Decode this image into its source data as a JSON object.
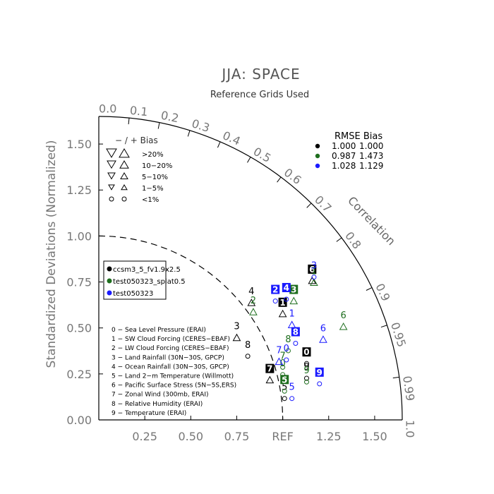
{
  "chart_data": {
    "type": "scatter",
    "title": "JJA: SPACE",
    "subtitle": "Reference Grids Used",
    "ylabel": "Standardized Deviations (Normalized)",
    "xlabel_ref": "REF",
    "corr_label": "Correlation",
    "x_ticks": [
      "0.25",
      "0.50",
      "0.75",
      "REF",
      "1.25",
      "1.50"
    ],
    "y_ticks": [
      "0.00",
      "0.25",
      "0.50",
      "0.75",
      "1.00",
      "1.25",
      "1.50"
    ],
    "corr_ticks": [
      "0.0",
      "0.1",
      "0.2",
      "0.3",
      "0.4",
      "0.5",
      "0.6",
      "0.7",
      "0.8",
      "0.9",
      "0.95",
      "0.99",
      "1.0"
    ],
    "ylim": [
      0,
      1.65
    ],
    "xlim": [
      0,
      1.65
    ],
    "bias_legend": {
      "header": "− / +   Bias",
      "rows": [
        ">20%",
        "10−20%",
        "5−10%",
        "1−5%",
        "<1%"
      ]
    },
    "rmse_table": {
      "header": "RMSE  Bias",
      "rows": [
        {
          "color": "#000000",
          "rmse": "1.000",
          "bias": "1.000"
        },
        {
          "color": "#1e6e1e",
          "rmse": "0.987",
          "bias": "1.473"
        },
        {
          "color": "#1a1aff",
          "rmse": "1.028",
          "bias": "1.129"
        }
      ]
    },
    "series": [
      {
        "name": "ccsm3_5_fv1.9x2.5",
        "color": "#000000"
      },
      {
        "name": "test050323_splat0.5",
        "color": "#1e6e1e"
      },
      {
        "name": "test050323",
        "color": "#1a1aff"
      }
    ],
    "variables": [
      "0 − Sea Level Pressure (ERAI)",
      "1 − SW Cloud Forcing (CERES−EBAF)",
      "2 − LW Cloud Forcing (CERES−EBAF)",
      "3 − Land Rainfall (30N−30S, GPCP)",
      "4 − Ocean Rainfall (30N−30S, GPCP)",
      "5 − Land 2−m Temperature (Willmott)",
      "6 − Pacific Surface Stress (5N−5S,ERS)",
      "7 − Zonal Wind (300mb, ERAI)",
      "8 − Relative Humidity (ERAI)",
      "9 − Temperature (ERAI)"
    ],
    "points": [
      {
        "label": "0",
        "s": 0,
        "x": 1.13,
        "y": 0.36,
        "box": true,
        "marker": "o"
      },
      {
        "label": "1",
        "s": 0,
        "x": 1.0,
        "y": 0.63,
        "box": true,
        "marker": "tri-up"
      },
      {
        "label": "3",
        "s": 0,
        "x": 0.75,
        "y": 0.5,
        "box": false,
        "marker": "tri-up"
      },
      {
        "label": "4",
        "s": 0,
        "x": 0.83,
        "y": 0.69,
        "box": false,
        "marker": "tri-up"
      },
      {
        "label": "6",
        "s": 0,
        "x": 1.16,
        "y": 0.81,
        "box": true,
        "marker": "tri-up"
      },
      {
        "label": "7",
        "s": 0,
        "x": 0.93,
        "y": 0.27,
        "box": true,
        "marker": "tri-up"
      },
      {
        "label": "8",
        "s": 0,
        "x": 0.81,
        "y": 0.4,
        "box": false,
        "marker": "o"
      },
      {
        "label": "9",
        "s": 0,
        "x": 1.13,
        "y": 0.28,
        "box": false,
        "marker": "o"
      },
      {
        "label": "5",
        "s": 0,
        "x": 1.01,
        "y": 0.17,
        "box": false,
        "marker": "o"
      },
      {
        "label": "1",
        "s": 1,
        "x": 1.17,
        "y": 0.8,
        "box": false,
        "marker": "tri-up"
      },
      {
        "label": "2",
        "s": 1,
        "x": 0.84,
        "y": 0.64,
        "box": false,
        "marker": "tri-up"
      },
      {
        "label": "3",
        "s": 1,
        "x": 1.06,
        "y": 0.7,
        "box": true,
        "marker": "tri-up"
      },
      {
        "label": "6",
        "s": 1,
        "x": 1.33,
        "y": 0.56,
        "box": false,
        "marker": "tri-up"
      },
      {
        "label": "7",
        "s": 1,
        "x": 1.0,
        "y": 0.34,
        "box": false,
        "marker": "o"
      },
      {
        "label": "8",
        "s": 1,
        "x": 1.03,
        "y": 0.43,
        "box": false,
        "marker": "o"
      },
      {
        "label": "9",
        "s": 1,
        "x": 1.13,
        "y": 0.26,
        "box": false,
        "marker": "o"
      },
      {
        "label": "5",
        "s": 1,
        "x": 1.01,
        "y": 0.21,
        "box": true,
        "marker": "o"
      },
      {
        "label": "0",
        "s": 1,
        "x": 1.0,
        "y": 0.3,
        "box": false,
        "marker": "o"
      },
      {
        "label": "2",
        "s": 2,
        "x": 0.96,
        "y": 0.7,
        "box": true,
        "marker": "o"
      },
      {
        "label": "4",
        "s": 2,
        "x": 1.02,
        "y": 0.71,
        "box": true,
        "marker": "o"
      },
      {
        "label": "1",
        "s": 2,
        "x": 1.05,
        "y": 0.57,
        "box": false,
        "marker": "tri-up"
      },
      {
        "label": "6",
        "s": 2,
        "x": 1.22,
        "y": 0.49,
        "box": false,
        "marker": "tri-up"
      },
      {
        "label": "8",
        "s": 2,
        "x": 1.07,
        "y": 0.47,
        "box": true,
        "marker": "o"
      },
      {
        "label": "7",
        "s": 2,
        "x": 0.98,
        "y": 0.37,
        "box": false,
        "marker": "tri-up"
      },
      {
        "label": "0",
        "s": 2,
        "x": 1.02,
        "y": 0.38,
        "box": false,
        "marker": "o"
      },
      {
        "label": "9",
        "s": 2,
        "x": 1.2,
        "y": 0.25,
        "box": true,
        "marker": "o"
      },
      {
        "label": "5",
        "s": 2,
        "x": 1.05,
        "y": 0.17,
        "box": false,
        "marker": "o"
      },
      {
        "label": "3",
        "s": 2,
        "x": 1.17,
        "y": 0.83,
        "box": false,
        "marker": "o"
      }
    ]
  }
}
